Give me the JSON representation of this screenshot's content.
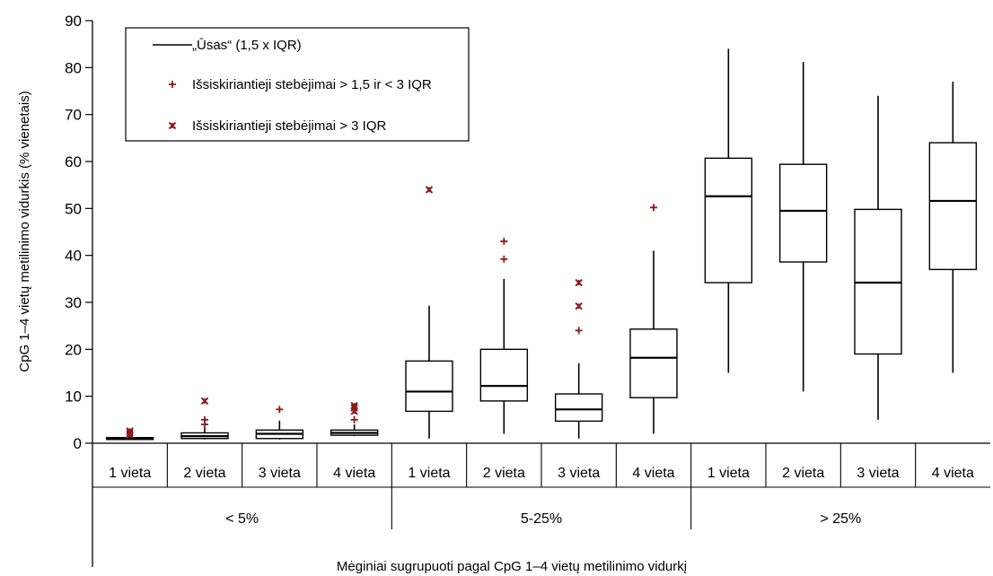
{
  "chart_data": {
    "type": "box",
    "ylabel": "CpG 1–4 vietų metilinimo vidurkis (% vienetais)",
    "xlabel": "Mėginiai sugrupuoti pagal CpG 1–4 vietų metilinimo vidurkį",
    "ylim": [
      0,
      90
    ],
    "yticks": [
      0,
      10,
      20,
      30,
      40,
      50,
      60,
      70,
      80,
      90
    ],
    "groups": [
      {
        "label": "< 5%",
        "categories": [
          "1 vieta",
          "2 vieta",
          "3 vieta",
          "4 vieta"
        ]
      },
      {
        "label": "5-25%",
        "categories": [
          "1 vieta",
          "2 vieta",
          "3 vieta",
          "4 vieta"
        ]
      },
      {
        "label": "> 25%",
        "categories": [
          "1 vieta",
          "2 vieta",
          "3 vieta",
          "4 vieta"
        ]
      }
    ],
    "boxes": [
      {
        "min": 0.8,
        "q1": 0.8,
        "median": 1.0,
        "q3": 1.2,
        "max": 1.2,
        "outliers_mild": [],
        "outliers_extreme": [
          1.8,
          2.2,
          2.6
        ]
      },
      {
        "min": 0.8,
        "q1": 1.0,
        "median": 1.5,
        "q3": 2.2,
        "max": 3.4,
        "outliers_mild": [
          4.0,
          5.0
        ],
        "outliers_extreme": [
          9.0
        ]
      },
      {
        "min": 0.8,
        "q1": 1.0,
        "median": 2.0,
        "q3": 2.8,
        "max": 4.8,
        "outliers_mild": [
          7.2
        ],
        "outliers_extreme": []
      },
      {
        "min": 1.5,
        "q1": 1.7,
        "median": 2.2,
        "q3": 2.8,
        "max": 4.0,
        "outliers_mild": [
          5.0
        ],
        "outliers_extreme": [
          6.8,
          7.5,
          8.0
        ]
      },
      {
        "min": 1.0,
        "q1": 6.8,
        "median": 11.0,
        "q3": 17.5,
        "max": 29.3,
        "outliers_mild": [],
        "outliers_extreme": [
          54.0
        ]
      },
      {
        "min": 2.0,
        "q1": 9.0,
        "median": 12.2,
        "q3": 20.0,
        "max": 35.0,
        "outliers_mild": [
          39.2,
          43.0
        ],
        "outliers_extreme": []
      },
      {
        "min": 1.0,
        "q1": 4.7,
        "median": 7.2,
        "q3": 10.5,
        "max": 17.0,
        "outliers_mild": [
          24.0
        ],
        "outliers_extreme": [
          29.2,
          34.2
        ]
      },
      {
        "min": 2.0,
        "q1": 9.7,
        "median": 18.2,
        "q3": 24.3,
        "max": 41.0,
        "outliers_mild": [
          50.2
        ],
        "outliers_extreme": []
      },
      {
        "min": 15.0,
        "q1": 34.2,
        "median": 52.6,
        "q3": 60.7,
        "max": 84.0,
        "outliers_mild": [],
        "outliers_extreme": []
      },
      {
        "min": 11.0,
        "q1": 38.6,
        "median": 49.5,
        "q3": 59.4,
        "max": 81.2,
        "outliers_mild": [],
        "outliers_extreme": []
      },
      {
        "min": 5.0,
        "q1": 19.0,
        "median": 34.2,
        "q3": 49.8,
        "max": 74.0,
        "outliers_mild": [],
        "outliers_extreme": []
      },
      {
        "min": 15.0,
        "q1": 37.0,
        "median": 51.6,
        "q3": 64.0,
        "max": 77.0,
        "outliers_mild": [],
        "outliers_extreme": []
      }
    ],
    "legend": {
      "position": "top-left",
      "entries": [
        {
          "symbol": "line",
          "label": "„Ūsas“ (1,5 x IQR)"
        },
        {
          "symbol": "plus",
          "label": "Išsiskiriantieji stebėjimai > 1,5 ir < 3 IQR"
        },
        {
          "symbol": "cross",
          "label": "Išsiskiriantieji stebėjimai > 3 IQR"
        }
      ]
    },
    "colors": {
      "outlier": "#8b1a1a",
      "box": "#000000"
    }
  }
}
